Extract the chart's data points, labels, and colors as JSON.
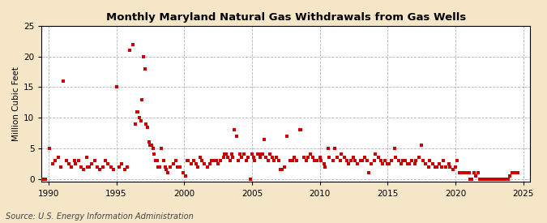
{
  "title": "Monthly Maryland Natural Gas Withdrawals from Gas Wells",
  "ylabel": "Million Cubic Feet",
  "source": "Source: U.S. Energy Information Administration",
  "fig_bg_color": "#f5e6c8",
  "plot_bg_color": "#ffffff",
  "marker_color": "#cc0000",
  "xlim": [
    1989.5,
    2025.5
  ],
  "ylim": [
    -0.5,
    25
  ],
  "xticks": [
    1990,
    1995,
    2000,
    2005,
    2010,
    2015,
    2020,
    2025
  ],
  "yticks": [
    0,
    5,
    10,
    15,
    20,
    25
  ],
  "data": [
    [
      1989.6,
      0.0
    ],
    [
      1989.8,
      0.0
    ],
    [
      1990.1,
      5.0
    ],
    [
      1990.3,
      2.5
    ],
    [
      1990.5,
      3.0
    ],
    [
      1990.7,
      3.5
    ],
    [
      1990.9,
      2.0
    ],
    [
      1991.1,
      16.0
    ],
    [
      1991.3,
      3.0
    ],
    [
      1991.5,
      2.5
    ],
    [
      1991.7,
      2.0
    ],
    [
      1991.9,
      3.0
    ],
    [
      1992.0,
      2.5
    ],
    [
      1992.2,
      3.0
    ],
    [
      1992.4,
      2.0
    ],
    [
      1992.6,
      1.5
    ],
    [
      1992.8,
      3.5
    ],
    [
      1992.9,
      2.0
    ],
    [
      1993.0,
      2.0
    ],
    [
      1993.2,
      2.5
    ],
    [
      1993.4,
      3.0
    ],
    [
      1993.6,
      2.0
    ],
    [
      1993.8,
      1.5
    ],
    [
      1994.0,
      2.0
    ],
    [
      1994.2,
      3.0
    ],
    [
      1994.4,
      2.5
    ],
    [
      1994.6,
      2.0
    ],
    [
      1994.8,
      1.5
    ],
    [
      1995.0,
      15.0
    ],
    [
      1995.2,
      2.0
    ],
    [
      1995.4,
      2.5
    ],
    [
      1995.6,
      1.5
    ],
    [
      1995.8,
      2.0
    ],
    [
      1996.0,
      21.0
    ],
    [
      1996.2,
      22.0
    ],
    [
      1996.4,
      9.0
    ],
    [
      1996.5,
      11.0
    ],
    [
      1996.6,
      11.0
    ],
    [
      1996.7,
      10.0
    ],
    [
      1996.8,
      9.5
    ],
    [
      1996.9,
      13.0
    ],
    [
      1997.0,
      20.0
    ],
    [
      1997.1,
      18.0
    ],
    [
      1997.2,
      9.0
    ],
    [
      1997.3,
      8.5
    ],
    [
      1997.4,
      6.0
    ],
    [
      1997.5,
      5.5
    ],
    [
      1997.6,
      5.5
    ],
    [
      1997.7,
      5.0
    ],
    [
      1997.8,
      4.0
    ],
    [
      1997.9,
      3.0
    ],
    [
      1998.0,
      3.0
    ],
    [
      1998.1,
      2.0
    ],
    [
      1998.2,
      2.0
    ],
    [
      1998.3,
      5.0
    ],
    [
      1998.5,
      3.0
    ],
    [
      1998.6,
      2.0
    ],
    [
      1998.7,
      1.5
    ],
    [
      1998.8,
      1.0
    ],
    [
      1999.0,
      2.0
    ],
    [
      1999.2,
      2.5
    ],
    [
      1999.4,
      3.0
    ],
    [
      1999.5,
      2.0
    ],
    [
      1999.7,
      2.0
    ],
    [
      1999.9,
      1.0
    ],
    [
      2000.1,
      0.5
    ],
    [
      2000.2,
      3.0
    ],
    [
      2000.3,
      3.0
    ],
    [
      2000.5,
      2.5
    ],
    [
      2000.7,
      3.0
    ],
    [
      2000.9,
      2.5
    ],
    [
      2001.0,
      2.0
    ],
    [
      2001.2,
      3.5
    ],
    [
      2001.3,
      3.0
    ],
    [
      2001.5,
      2.5
    ],
    [
      2001.7,
      2.0
    ],
    [
      2001.9,
      2.5
    ],
    [
      2002.0,
      3.0
    ],
    [
      2002.2,
      3.0
    ],
    [
      2002.4,
      3.0
    ],
    [
      2002.5,
      2.5
    ],
    [
      2002.7,
      3.0
    ],
    [
      2002.9,
      3.5
    ],
    [
      2003.0,
      4.0
    ],
    [
      2003.1,
      4.0
    ],
    [
      2003.2,
      3.5
    ],
    [
      2003.4,
      3.0
    ],
    [
      2003.5,
      4.0
    ],
    [
      2003.6,
      3.5
    ],
    [
      2003.7,
      8.0
    ],
    [
      2003.9,
      7.0
    ],
    [
      2004.0,
      3.0
    ],
    [
      2004.1,
      4.0
    ],
    [
      2004.2,
      3.5
    ],
    [
      2004.4,
      4.0
    ],
    [
      2004.6,
      3.0
    ],
    [
      2004.7,
      3.5
    ],
    [
      2004.9,
      0.0
    ],
    [
      2005.0,
      4.0
    ],
    [
      2005.1,
      3.5
    ],
    [
      2005.2,
      3.0
    ],
    [
      2005.4,
      4.0
    ],
    [
      2005.5,
      4.0
    ],
    [
      2005.6,
      3.5
    ],
    [
      2005.7,
      4.0
    ],
    [
      2005.8,
      4.0
    ],
    [
      2005.9,
      6.5
    ],
    [
      2006.0,
      3.5
    ],
    [
      2006.2,
      3.0
    ],
    [
      2006.3,
      4.0
    ],
    [
      2006.5,
      3.5
    ],
    [
      2006.6,
      3.0
    ],
    [
      2006.8,
      3.5
    ],
    [
      2007.0,
      3.0
    ],
    [
      2007.1,
      1.5
    ],
    [
      2007.2,
      1.5
    ],
    [
      2007.4,
      2.0
    ],
    [
      2007.6,
      7.0
    ],
    [
      2007.8,
      3.0
    ],
    [
      2008.0,
      3.0
    ],
    [
      2008.1,
      3.5
    ],
    [
      2008.3,
      3.0
    ],
    [
      2008.5,
      8.0
    ],
    [
      2008.6,
      8.0
    ],
    [
      2008.8,
      3.5
    ],
    [
      2009.0,
      3.0
    ],
    [
      2009.1,
      3.5
    ],
    [
      2009.3,
      4.0
    ],
    [
      2009.5,
      3.5
    ],
    [
      2009.6,
      3.0
    ],
    [
      2009.8,
      3.0
    ],
    [
      2010.0,
      3.5
    ],
    [
      2010.1,
      3.0
    ],
    [
      2010.3,
      2.5
    ],
    [
      2010.4,
      2.0
    ],
    [
      2010.6,
      5.0
    ],
    [
      2010.7,
      3.5
    ],
    [
      2011.0,
      3.0
    ],
    [
      2011.1,
      5.0
    ],
    [
      2011.3,
      3.5
    ],
    [
      2011.5,
      3.0
    ],
    [
      2011.6,
      4.0
    ],
    [
      2011.8,
      3.5
    ],
    [
      2012.0,
      3.0
    ],
    [
      2012.1,
      2.5
    ],
    [
      2012.3,
      3.0
    ],
    [
      2012.5,
      3.5
    ],
    [
      2012.6,
      3.0
    ],
    [
      2012.8,
      2.5
    ],
    [
      2013.0,
      3.0
    ],
    [
      2013.1,
      3.0
    ],
    [
      2013.3,
      3.5
    ],
    [
      2013.5,
      3.0
    ],
    [
      2013.6,
      1.0
    ],
    [
      2013.8,
      2.5
    ],
    [
      2014.0,
      3.0
    ],
    [
      2014.1,
      4.0
    ],
    [
      2014.3,
      3.5
    ],
    [
      2014.5,
      3.0
    ],
    [
      2014.6,
      2.5
    ],
    [
      2014.8,
      3.0
    ],
    [
      2015.0,
      2.5
    ],
    [
      2015.1,
      2.5
    ],
    [
      2015.3,
      3.0
    ],
    [
      2015.5,
      5.0
    ],
    [
      2015.6,
      3.5
    ],
    [
      2015.8,
      3.0
    ],
    [
      2016.0,
      2.5
    ],
    [
      2016.1,
      3.0
    ],
    [
      2016.3,
      3.0
    ],
    [
      2016.5,
      2.5
    ],
    [
      2016.6,
      2.5
    ],
    [
      2016.8,
      3.0
    ],
    [
      2017.0,
      2.5
    ],
    [
      2017.1,
      3.0
    ],
    [
      2017.3,
      3.5
    ],
    [
      2017.5,
      5.5
    ],
    [
      2017.6,
      3.0
    ],
    [
      2017.8,
      2.5
    ],
    [
      2018.0,
      2.0
    ],
    [
      2018.1,
      3.0
    ],
    [
      2018.3,
      2.5
    ],
    [
      2018.5,
      2.0
    ],
    [
      2018.6,
      2.0
    ],
    [
      2018.8,
      2.5
    ],
    [
      2019.0,
      2.0
    ],
    [
      2019.1,
      3.0
    ],
    [
      2019.3,
      2.0
    ],
    [
      2019.5,
      2.5
    ],
    [
      2019.6,
      2.0
    ],
    [
      2019.8,
      1.5
    ],
    [
      2020.0,
      2.0
    ],
    [
      2020.1,
      3.0
    ],
    [
      2020.3,
      1.0
    ],
    [
      2020.4,
      1.0
    ],
    [
      2020.6,
      1.0
    ],
    [
      2020.8,
      1.0
    ],
    [
      2021.0,
      1.0
    ],
    [
      2021.1,
      0.0
    ],
    [
      2021.2,
      0.0
    ],
    [
      2021.4,
      1.0
    ],
    [
      2021.5,
      0.5
    ],
    [
      2021.7,
      1.0
    ],
    [
      2021.8,
      0.0
    ],
    [
      2021.9,
      0.0
    ],
    [
      2022.0,
      0.0
    ],
    [
      2022.1,
      0.0
    ],
    [
      2022.3,
      0.0
    ],
    [
      2022.5,
      0.0
    ],
    [
      2022.7,
      0.0
    ],
    [
      2022.9,
      0.0
    ],
    [
      2023.0,
      0.0
    ],
    [
      2023.2,
      0.0
    ],
    [
      2023.4,
      0.0
    ],
    [
      2023.5,
      0.0
    ],
    [
      2023.7,
      0.0
    ],
    [
      2023.9,
      0.0
    ],
    [
      2024.0,
      0.5
    ],
    [
      2024.2,
      1.0
    ],
    [
      2024.4,
      1.0
    ],
    [
      2024.6,
      1.0
    ]
  ]
}
